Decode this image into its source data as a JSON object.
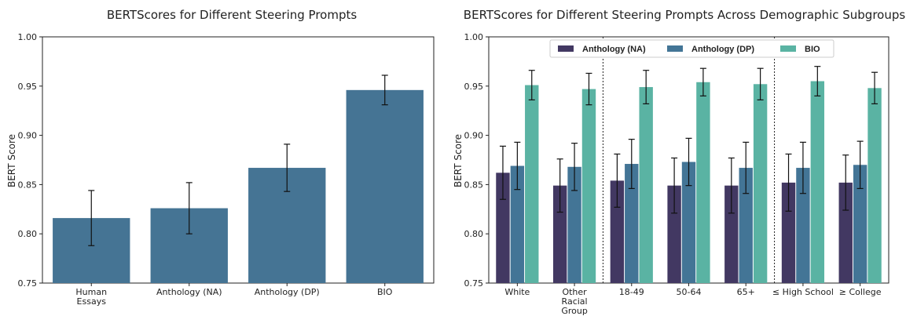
{
  "chart_data": [
    {
      "type": "bar",
      "title": "BERTScores for Different Steering Prompts",
      "xlabel": "",
      "ylabel": "BERT Score",
      "ylim": [
        0.75,
        1.0
      ],
      "yticks": [
        "0.75",
        "0.80",
        "0.85",
        "0.90",
        "0.95",
        "1.00"
      ],
      "categories": [
        [
          "Human",
          "Essays"
        ],
        [
          "Anthology (NA)"
        ],
        [
          "Anthology (DP)"
        ],
        [
          "BIO"
        ]
      ],
      "values": [
        0.816,
        0.826,
        0.867,
        0.946
      ],
      "errors": [
        0.028,
        0.026,
        0.024,
        0.015
      ],
      "colors": {
        "bar": "#457494"
      }
    },
    {
      "type": "bar",
      "title": "BERTScores for Different Steering Prompts Across Demographic Subgroups",
      "xlabel": "",
      "ylabel": "BERT Score",
      "ylim": [
        0.75,
        1.0
      ],
      "yticks": [
        "0.75",
        "0.80",
        "0.85",
        "0.90",
        "0.95",
        "1.00"
      ],
      "legend": {
        "placement": "top-center"
      },
      "categories": [
        [
          "White"
        ],
        [
          "Other",
          "Racial",
          "Group"
        ],
        [
          "18-49"
        ],
        [
          "50-64"
        ],
        [
          "65+"
        ],
        [
          "≤ High School"
        ],
        [
          "≥ College"
        ]
      ],
      "group_separators_after": [
        1,
        4
      ],
      "series": [
        {
          "name": "Anthology (NA)",
          "color": "#423862",
          "values": [
            0.862,
            0.849,
            0.854,
            0.849,
            0.849,
            0.852,
            0.852
          ],
          "errors": [
            0.027,
            0.027,
            0.027,
            0.028,
            0.028,
            0.029,
            0.028
          ]
        },
        {
          "name": "Anthology (DP)",
          "color": "#437596",
          "values": [
            0.869,
            0.868,
            0.871,
            0.873,
            0.867,
            0.867,
            0.87
          ],
          "errors": [
            0.024,
            0.024,
            0.025,
            0.024,
            0.026,
            0.026,
            0.024
          ]
        },
        {
          "name": "BIO",
          "color": "#5ab3a3",
          "values": [
            0.951,
            0.947,
            0.949,
            0.954,
            0.952,
            0.955,
            0.948
          ],
          "errors": [
            0.015,
            0.016,
            0.017,
            0.014,
            0.016,
            0.015,
            0.016
          ]
        }
      ]
    }
  ]
}
